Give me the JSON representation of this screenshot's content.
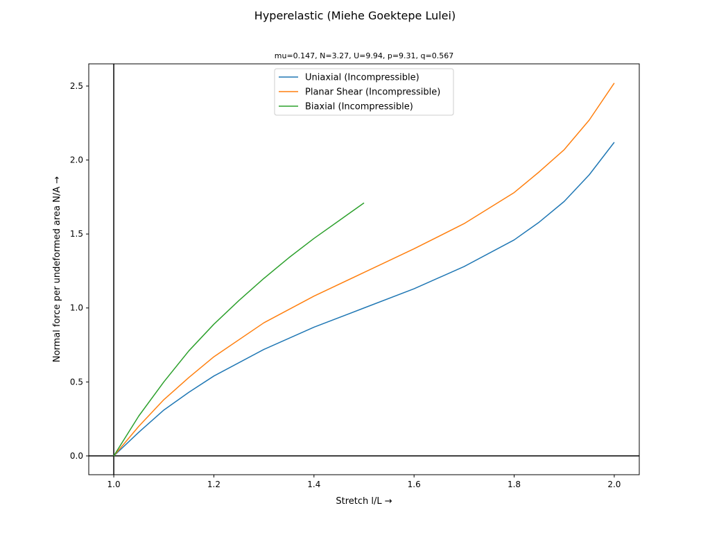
{
  "chart_data": {
    "type": "line",
    "title": "Hyperelastic (Miehe Goektepe Lulei)",
    "subtitle": "mu=0.147, N=3.27, U=9.94, p=9.31, q=0.567",
    "xlabel": "Stretch l/L  →",
    "ylabel": "Normal force per undeformed area N/A  →",
    "xlim": [
      0.95,
      2.05
    ],
    "ylim": [
      -0.127,
      2.65
    ],
    "xticks": [
      1.0,
      1.2,
      1.4,
      1.6,
      1.8,
      2.0
    ],
    "xtick_labels": [
      "1.0",
      "1.2",
      "1.4",
      "1.6",
      "1.8",
      "2.0"
    ],
    "yticks": [
      0.0,
      0.5,
      1.0,
      1.5,
      2.0,
      2.5
    ],
    "ytick_labels": [
      "0.0",
      "0.5",
      "1.0",
      "1.5",
      "2.0",
      "2.5"
    ],
    "grid": false,
    "legend_position": "top-center",
    "series": [
      {
        "name": "Uniaxial (Incompressible)",
        "color": "#1f77b4",
        "x": [
          1.0,
          1.05,
          1.1,
          1.15,
          1.2,
          1.3,
          1.4,
          1.5,
          1.6,
          1.7,
          1.8,
          1.85,
          1.9,
          1.95,
          2.0
        ],
        "y": [
          0.0,
          0.16,
          0.31,
          0.43,
          0.54,
          0.72,
          0.87,
          1.0,
          1.13,
          1.28,
          1.46,
          1.58,
          1.72,
          1.9,
          2.12
        ]
      },
      {
        "name": "Planar Shear (Incompressible)",
        "color": "#ff7f0e",
        "x": [
          1.0,
          1.05,
          1.1,
          1.15,
          1.2,
          1.3,
          1.4,
          1.5,
          1.6,
          1.7,
          1.8,
          1.85,
          1.9,
          1.95,
          2.0
        ],
        "y": [
          0.0,
          0.2,
          0.38,
          0.53,
          0.67,
          0.9,
          1.08,
          1.24,
          1.4,
          1.57,
          1.78,
          1.92,
          2.07,
          2.27,
          2.52
        ]
      },
      {
        "name": "Biaxial (Incompressible)",
        "color": "#2ca02c",
        "x": [
          1.0,
          1.05,
          1.1,
          1.15,
          1.2,
          1.25,
          1.3,
          1.35,
          1.4,
          1.45,
          1.5
        ],
        "y": [
          0.0,
          0.27,
          0.5,
          0.71,
          0.89,
          1.05,
          1.2,
          1.34,
          1.47,
          1.59,
          1.71
        ]
      }
    ]
  }
}
